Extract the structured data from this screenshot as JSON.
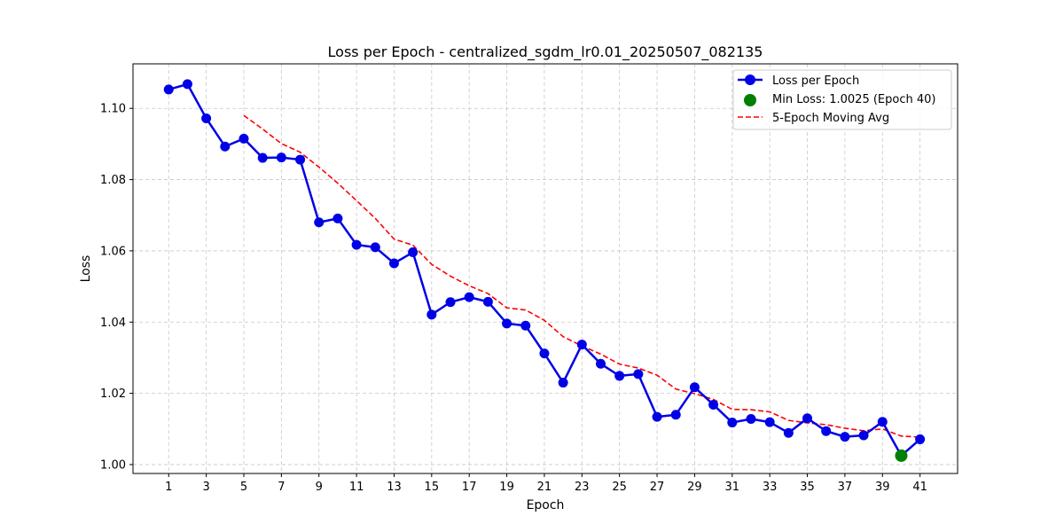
{
  "chart_data": {
    "type": "line",
    "title": "Loss per Epoch - centralized_sgdm_lr0.01_20250507_082135",
    "xlabel": "Epoch",
    "ylabel": "Loss",
    "xlim": [
      -0.9,
      43.0
    ],
    "ylim": [
      0.9975,
      1.1125
    ],
    "xticks": [
      1,
      3,
      5,
      7,
      9,
      11,
      13,
      15,
      17,
      19,
      21,
      23,
      25,
      27,
      29,
      31,
      33,
      35,
      37,
      39,
      41
    ],
    "yticks": [
      1.0,
      1.02,
      1.04,
      1.06,
      1.08,
      1.1
    ],
    "ytick_labels": [
      "1.00",
      "1.02",
      "1.04",
      "1.06",
      "1.08",
      "1.10"
    ],
    "grid": true,
    "legend_position": "top-right",
    "colors": {
      "loss": "#0000e6",
      "min": "#008000",
      "moving_avg": "#ff0000",
      "grid": "#b0b0b0"
    },
    "series": [
      {
        "name": "Loss per Epoch",
        "style": "line-marker",
        "x": [
          1,
          2,
          3,
          4,
          5,
          6,
          7,
          8,
          9,
          10,
          11,
          12,
          13,
          14,
          15,
          16,
          17,
          18,
          19,
          20,
          21,
          22,
          23,
          24,
          25,
          26,
          27,
          28,
          29,
          30,
          31,
          32,
          33,
          34,
          35,
          36,
          37,
          38,
          39,
          40,
          41
        ],
        "values": [
          1.1053,
          1.1068,
          1.0972,
          1.0893,
          1.0915,
          1.0861,
          1.0862,
          1.0856,
          1.068,
          1.0691,
          1.0617,
          1.061,
          1.0565,
          1.0596,
          1.0421,
          1.0456,
          1.047,
          1.0457,
          1.0396,
          1.039,
          1.0312,
          1.023,
          1.0337,
          1.0283,
          1.0249,
          1.0254,
          1.0134,
          1.014,
          1.0217,
          1.0168,
          1.0118,
          1.0128,
          1.0119,
          1.0089,
          1.013,
          1.0094,
          1.0078,
          1.0082,
          1.012,
          1.0025,
          1.0071
        ]
      },
      {
        "name": "Min Loss: 1.0025 (Epoch 40)",
        "style": "point",
        "x": [
          40
        ],
        "values": [
          1.0025
        ]
      },
      {
        "name": "5-Epoch Moving Avg",
        "style": "dashed-line",
        "x": [
          5,
          6,
          7,
          8,
          9,
          10,
          11,
          12,
          13,
          14,
          15,
          16,
          17,
          18,
          19,
          20,
          21,
          22,
          23,
          24,
          25,
          26,
          27,
          28,
          29,
          30,
          31,
          32,
          33,
          34,
          35,
          36,
          37,
          38,
          39,
          40,
          41
        ],
        "values": [
          1.098,
          1.0942,
          1.0901,
          1.0877,
          1.0835,
          1.079,
          1.0741,
          1.0691,
          1.0633,
          1.0616,
          1.0562,
          1.0529,
          1.0502,
          1.048,
          1.044,
          1.0434,
          1.0405,
          1.0359,
          1.0333,
          1.031,
          1.0282,
          1.0271,
          1.0251,
          1.0212,
          1.0199,
          1.0183,
          1.0155,
          1.0154,
          1.0148,
          1.0124,
          1.0117,
          1.0112,
          1.0102,
          1.0095,
          1.01,
          1.008,
          1.0077
        ]
      }
    ]
  }
}
